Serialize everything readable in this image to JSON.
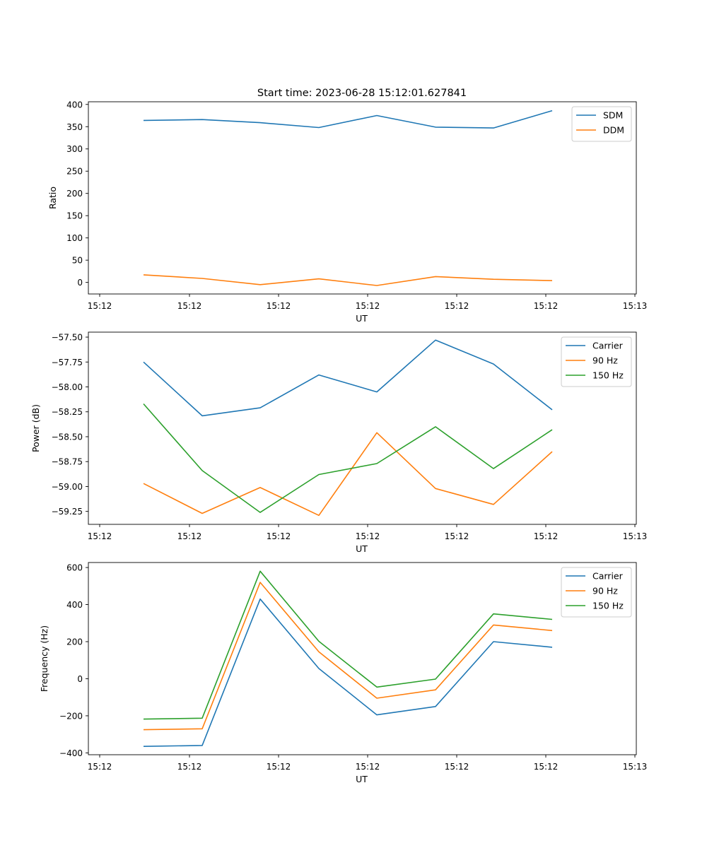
{
  "figure": {
    "title": "Start time: 2023-06-28 15:12:01.627841"
  },
  "chart_data": [
    {
      "type": "line",
      "xlabel": "UT",
      "ylabel": "Ratio",
      "ylim": [
        -26,
        406
      ],
      "yticks": [
        0,
        50,
        100,
        150,
        200,
        250,
        300,
        350,
        400
      ],
      "xtick_labels": [
        "15:12",
        "15:12",
        "15:12",
        "15:12",
        "15:12",
        "15:12",
        "15:12",
        "15:13"
      ],
      "legend": "top-right",
      "series": [
        {
          "name": "SDM",
          "color": "#1f77b4",
          "values": [
            364,
            366,
            359,
            348,
            375,
            349,
            347,
            386
          ]
        },
        {
          "name": "DDM",
          "color": "#ff7f0e",
          "values": [
            17,
            9,
            -5,
            8,
            -7,
            13,
            7,
            4
          ]
        }
      ]
    },
    {
      "type": "line",
      "xlabel": "UT",
      "ylabel": "Power (dB)",
      "ylim": [
        -59.38,
        -57.45
      ],
      "yticks": [
        -59.25,
        -59.0,
        -58.75,
        -58.5,
        -58.25,
        -58.0,
        -57.75,
        -57.5
      ],
      "ytick_labels": [
        "−59.25",
        "−59.00",
        "−58.75",
        "−58.50",
        "−58.25",
        "−58.00",
        "−57.75",
        "−57.50"
      ],
      "xtick_labels": [
        "15:12",
        "15:12",
        "15:12",
        "15:12",
        "15:12",
        "15:12",
        "15:12",
        "15:13"
      ],
      "legend": "top-right",
      "series": [
        {
          "name": "Carrier",
          "color": "#1f77b4",
          "values": [
            -57.75,
            -58.29,
            -58.21,
            -57.88,
            -58.05,
            -57.53,
            -57.77,
            -58.23
          ]
        },
        {
          "name": "90 Hz",
          "color": "#ff7f0e",
          "values": [
            -58.97,
            -59.27,
            -59.01,
            -59.29,
            -58.46,
            -59.02,
            -59.18,
            -58.65
          ]
        },
        {
          "name": "150 Hz",
          "color": "#2ca02c",
          "values": [
            -58.17,
            -58.84,
            -59.26,
            -58.88,
            -58.77,
            -58.4,
            -58.82,
            -58.43
          ]
        }
      ]
    },
    {
      "type": "line",
      "xlabel": "UT",
      "ylabel": "Frequency (Hz)",
      "ylim": [
        -410,
        627
      ],
      "yticks": [
        -400,
        -200,
        0,
        200,
        400,
        600
      ],
      "ytick_labels": [
        "−400",
        "−200",
        "0",
        "200",
        "400",
        "600"
      ],
      "xtick_labels": [
        "15:12",
        "15:12",
        "15:12",
        "15:12",
        "15:12",
        "15:12",
        "15:12",
        "15:13"
      ],
      "legend": "top-right",
      "series": [
        {
          "name": "Carrier",
          "color": "#1f77b4",
          "values": [
            -365,
            -360,
            430,
            55,
            -195,
            -150,
            200,
            170
          ]
        },
        {
          "name": "90 Hz",
          "color": "#ff7f0e",
          "values": [
            -275,
            -270,
            520,
            145,
            -105,
            -60,
            290,
            260
          ]
        },
        {
          "name": "150 Hz",
          "color": "#2ca02c",
          "values": [
            -218,
            -213,
            580,
            202,
            -45,
            -2,
            350,
            320
          ]
        }
      ]
    }
  ]
}
